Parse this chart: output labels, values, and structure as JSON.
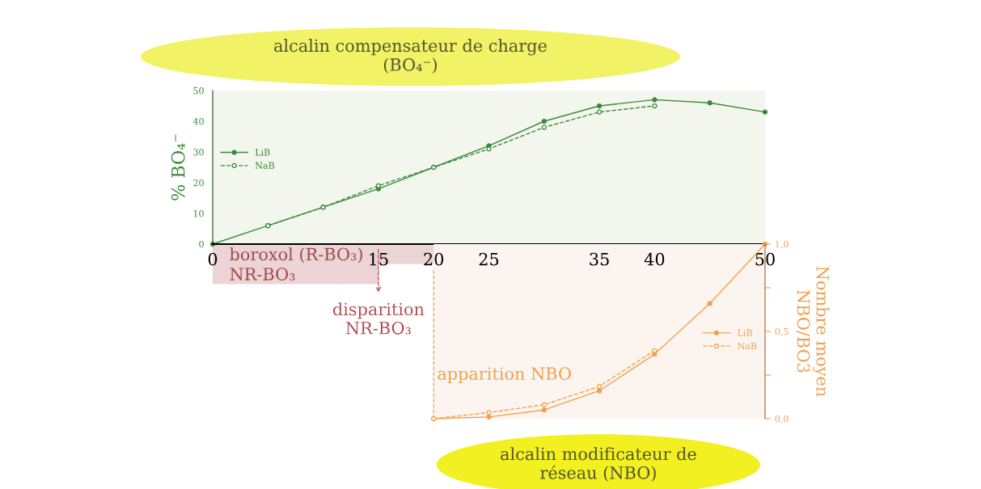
{
  "chart_data": [
    {
      "type": "line",
      "title": "alcalin compensateur de charge\n(BO₄⁻)",
      "ylabel": "% BO₄⁻",
      "xlim": [
        0,
        50
      ],
      "xticks": [
        0,
        15,
        20,
        25,
        35,
        40,
        50
      ],
      "ylim": [
        0,
        50
      ],
      "yticks": [
        0,
        10,
        20,
        30,
        40,
        50
      ],
      "tick_labels": "y",
      "marker": "circle",
      "legend": "left",
      "grid": false,
      "series": [
        {
          "name": "LiB",
          "color": "#3a8a3a",
          "line_style": "solid",
          "x": [
            0,
            5,
            10,
            15,
            20,
            25,
            30,
            35,
            40,
            45,
            50
          ],
          "values": [
            0,
            6,
            12,
            18,
            25,
            32,
            40,
            45,
            47,
            46,
            43
          ]
        },
        {
          "name": "NaB",
          "color": "#3a8a3a",
          "line_style": "dashed",
          "x": [
            5,
            10,
            15,
            20,
            25,
            30,
            35,
            40
          ],
          "values": [
            6,
            12,
            19,
            25,
            31,
            38,
            43,
            45
          ]
        }
      ],
      "annotations": [
        "boroxol (R-BO₃)",
        "NR-BO₃",
        "disparition\nNR-BO₃"
      ]
    },
    {
      "type": "line",
      "title": "alcalin modificateur de\nréseau (NBO)",
      "ylabel": "Nombre moyen\nNBO/BO3",
      "xlim": [
        0,
        50
      ],
      "xticks": [
        0,
        15,
        20,
        25,
        35,
        40,
        50
      ],
      "ylim": [
        0,
        1
      ],
      "yticks": [
        {
          "value": 0,
          "label": "0,0"
        },
        {
          "value": 0.25,
          "label": null
        },
        {
          "value": 0.5,
          "label": "0,5"
        },
        {
          "value": 0.75,
          "label": null
        },
        {
          "value": 1,
          "label": "1,0"
        }
      ],
      "marker": "circle",
      "legend": "right",
      "grid": false,
      "series": [
        {
          "name": "LiB",
          "color": "#f0a050",
          "line_style": "solid",
          "x": [
            20,
            25,
            30,
            35,
            40,
            45,
            50
          ],
          "values": [
            0,
            0.01,
            0.05,
            0.16,
            0.37,
            0.66,
            1.0
          ]
        },
        {
          "name": "NaB",
          "color": "#f0a050",
          "line_style": "dashed",
          "x": [
            20,
            25,
            30,
            35,
            40
          ],
          "values": [
            0,
            0.035,
            0.08,
            0.185,
            0.39
          ]
        }
      ],
      "ref_lines": [
        {
          "axis": "x",
          "value": 20,
          "label": "apparition NBO",
          "line_style": "dashed"
        }
      ]
    }
  ]
}
